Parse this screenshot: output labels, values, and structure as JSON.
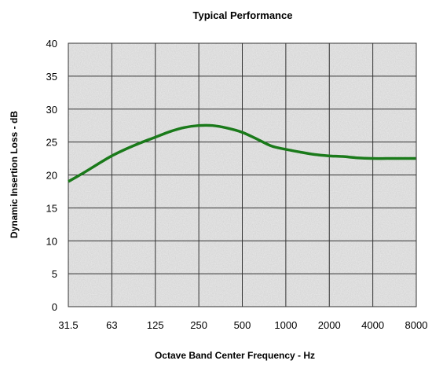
{
  "chart_data": {
    "type": "line",
    "title": "Typical Performance",
    "xlabel": "Octave Band Center Frequency - Hz",
    "ylabel": "Dynamic Insertion Loss - dB",
    "categories": [
      "31.5",
      "63",
      "125",
      "250",
      "500",
      "1000",
      "2000",
      "4000",
      "8000"
    ],
    "yticks": [
      0,
      5,
      10,
      15,
      20,
      25,
      30,
      35,
      40
    ],
    "ylim": [
      0,
      40
    ],
    "grid": true,
    "series": [
      {
        "x": [
          31.5,
          40,
          50,
          63,
          80,
          100,
          125,
          160,
          200,
          250,
          315,
          400,
          500,
          630,
          800,
          1000,
          1250,
          1600,
          2000,
          2500,
          3150,
          4000,
          5000,
          6300,
          8000
        ],
        "values": [
          19.0,
          20.3,
          21.6,
          22.9,
          24.0,
          24.9,
          25.7,
          26.6,
          27.2,
          27.5,
          27.5,
          27.1,
          26.5,
          25.5,
          24.4,
          23.9,
          23.5,
          23.1,
          22.9,
          22.8,
          22.6,
          22.5,
          22.5,
          22.5,
          22.5
        ],
        "color": "#1a7a1a"
      }
    ]
  }
}
